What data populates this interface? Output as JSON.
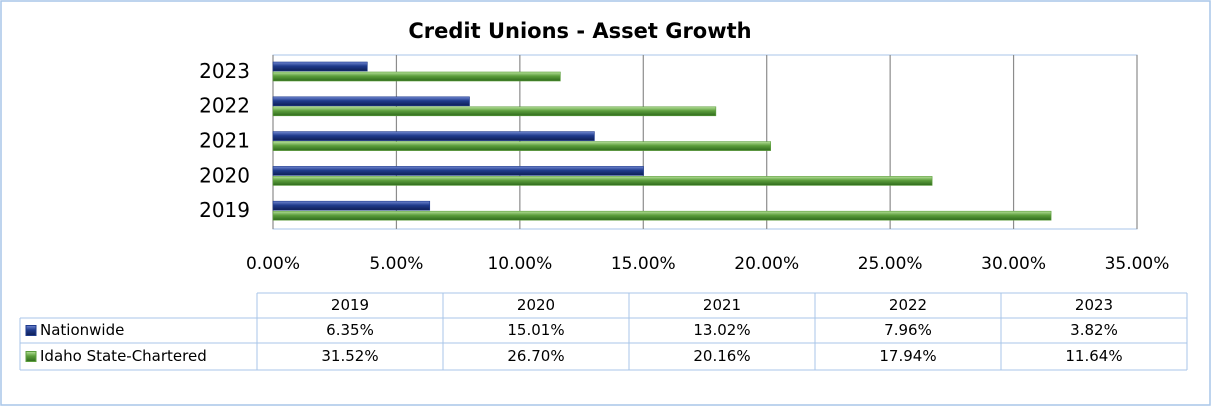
{
  "chart_data": {
    "type": "barh",
    "title": "Credit Unions - Asset Growth",
    "categories": [
      "2019",
      "2020",
      "2021",
      "2022",
      "2023"
    ],
    "series": [
      {
        "name": "Nationwide",
        "color": "#1f3b8c",
        "values": [
          6.35,
          15.01,
          13.02,
          7.96,
          3.82
        ],
        "value_labels": [
          "6.35%",
          "15.01%",
          "13.02%",
          "7.96%",
          "3.82%"
        ]
      },
      {
        "name": "Idaho State-Chartered",
        "color": "#5c9e3c",
        "values": [
          31.52,
          26.7,
          20.16,
          17.94,
          11.64
        ],
        "value_labels": [
          "31.52%",
          "26.70%",
          "20.16%",
          "17.94%",
          "11.64%"
        ]
      }
    ],
    "xlim": [
      0,
      35
    ],
    "xticks": [
      {
        "value": 0,
        "label": "0.00%"
      },
      {
        "value": 5,
        "label": "5.00%"
      },
      {
        "value": 10,
        "label": "10.00%"
      },
      {
        "value": 15,
        "label": "15.00%"
      },
      {
        "value": 20,
        "label": "20.00%"
      },
      {
        "value": 25,
        "label": "25.00%"
      },
      {
        "value": 30,
        "label": "30.00%"
      },
      {
        "value": 35,
        "label": "35.00%"
      }
    ],
    "grid": true,
    "data_table": true
  }
}
